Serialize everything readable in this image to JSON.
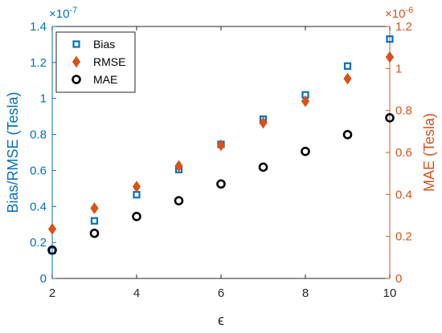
{
  "chart_data": {
    "type": "scatter",
    "x": [
      2,
      3,
      4,
      5,
      6,
      7,
      8,
      9,
      10
    ],
    "xlabel": "ϵ",
    "xlim": [
      2,
      10
    ],
    "xticks": [
      "2",
      "4",
      "6",
      "8",
      "10"
    ],
    "left_axis": {
      "label": "Bias/RMSE (Tesla)",
      "exponent": "×10",
      "exponent_power": "-7",
      "ylim": [
        0,
        1.4
      ],
      "ticks": [
        "0",
        "0.2",
        "0.4",
        "0.6",
        "0.8",
        "1",
        "1.2",
        "1.4"
      ],
      "color": "#0072BD"
    },
    "right_axis": {
      "label": "MAE (Tesla)",
      "exponent": "×10",
      "exponent_power": "-6",
      "ylim": [
        0,
        1.2
      ],
      "ticks": [
        "0",
        "0.2",
        "0.4",
        "0.6",
        "0.8",
        "1",
        "1.2"
      ],
      "color": "#D95319"
    },
    "series": [
      {
        "name": "Bias",
        "axis": "left",
        "marker": "square",
        "color": "#0072BD",
        "values": [
          0.155,
          0.32,
          0.465,
          0.605,
          0.745,
          0.885,
          1.02,
          1.18,
          1.33
        ]
      },
      {
        "name": "RMSE",
        "axis": "left",
        "marker": "diamond",
        "color": "#D95319",
        "values": [
          0.275,
          0.39,
          0.51,
          0.625,
          0.74,
          0.865,
          0.985,
          1.11,
          1.23
        ]
      },
      {
        "name": "MAE",
        "axis": "right",
        "marker": "circle",
        "color": "#000000",
        "values": [
          0.135,
          0.215,
          0.295,
          0.37,
          0.45,
          0.53,
          0.605,
          0.685,
          0.765
        ]
      }
    ],
    "legend": {
      "location": "top-left"
    },
    "grid": false
  }
}
